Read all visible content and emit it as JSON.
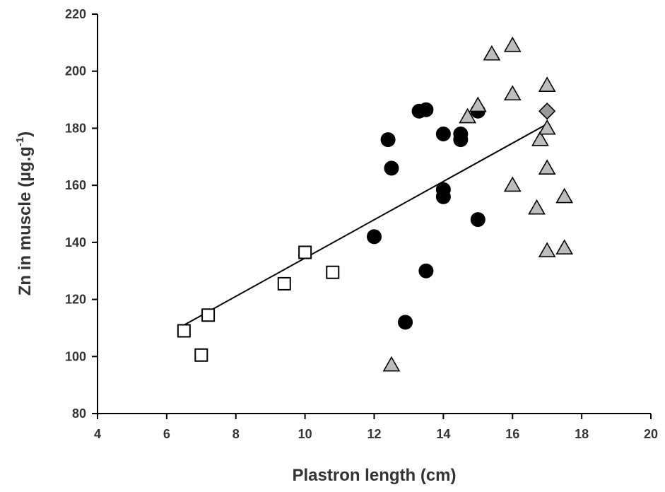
{
  "chart_data": {
    "type": "scatter",
    "xlabel": "Plastron length (cm)",
    "ylabel_main": "Zn in muscle (µg.g",
    "ylabel_sup": "-1",
    "ylabel_close": ")",
    "xlim": [
      4,
      20
    ],
    "ylim": [
      80,
      220
    ],
    "xticks": [
      4,
      6,
      8,
      10,
      12,
      14,
      16,
      18,
      20
    ],
    "yticks": [
      80,
      100,
      120,
      140,
      160,
      180,
      200,
      220
    ],
    "grid": false,
    "series": [
      {
        "marker": "square",
        "points": [
          {
            "x": 6.5,
            "y": 109
          },
          {
            "x": 7.0,
            "y": 100.5
          },
          {
            "x": 7.2,
            "y": 114.5
          },
          {
            "x": 9.4,
            "y": 125.5
          },
          {
            "x": 10.0,
            "y": 136.5
          },
          {
            "x": 10.8,
            "y": 129.5
          }
        ]
      },
      {
        "marker": "circle",
        "points": [
          {
            "x": 12.0,
            "y": 142
          },
          {
            "x": 12.4,
            "y": 176
          },
          {
            "x": 12.5,
            "y": 166
          },
          {
            "x": 12.9,
            "y": 112
          },
          {
            "x": 13.3,
            "y": 186
          },
          {
            "x": 13.5,
            "y": 186.5
          },
          {
            "x": 13.5,
            "y": 130
          },
          {
            "x": 14.0,
            "y": 178
          },
          {
            "x": 14.0,
            "y": 158.5
          },
          {
            "x": 14.0,
            "y": 156
          },
          {
            "x": 14.5,
            "y": 178
          },
          {
            "x": 14.5,
            "y": 176
          },
          {
            "x": 15.0,
            "y": 186
          },
          {
            "x": 15.0,
            "y": 148
          }
        ]
      },
      {
        "marker": "triangle",
        "points": [
          {
            "x": 12.5,
            "y": 97
          },
          {
            "x": 14.7,
            "y": 184
          },
          {
            "x": 15.0,
            "y": 188
          },
          {
            "x": 15.4,
            "y": 206
          },
          {
            "x": 16.0,
            "y": 209
          },
          {
            "x": 16.0,
            "y": 192
          },
          {
            "x": 16.0,
            "y": 160
          },
          {
            "x": 16.7,
            "y": 152
          },
          {
            "x": 16.8,
            "y": 176
          },
          {
            "x": 17.0,
            "y": 195
          },
          {
            "x": 17.0,
            "y": 180
          },
          {
            "x": 17.0,
            "y": 166
          },
          {
            "x": 17.0,
            "y": 137
          },
          {
            "x": 17.5,
            "y": 156
          },
          {
            "x": 17.5,
            "y": 138
          }
        ]
      },
      {
        "marker": "diamond",
        "points": [
          {
            "x": 17.0,
            "y": 186
          }
        ]
      }
    ],
    "fit_line": {
      "x": [
        6.5,
        17.0
      ],
      "y": [
        111,
        181.5
      ]
    },
    "colors": {
      "square_fill": "#ffffff",
      "circle_fill": "#000000",
      "triangle_fill": "#bdbdbd",
      "diamond_fill": "#9a9a9a",
      "axis": "#000000",
      "text": "#333333"
    }
  }
}
